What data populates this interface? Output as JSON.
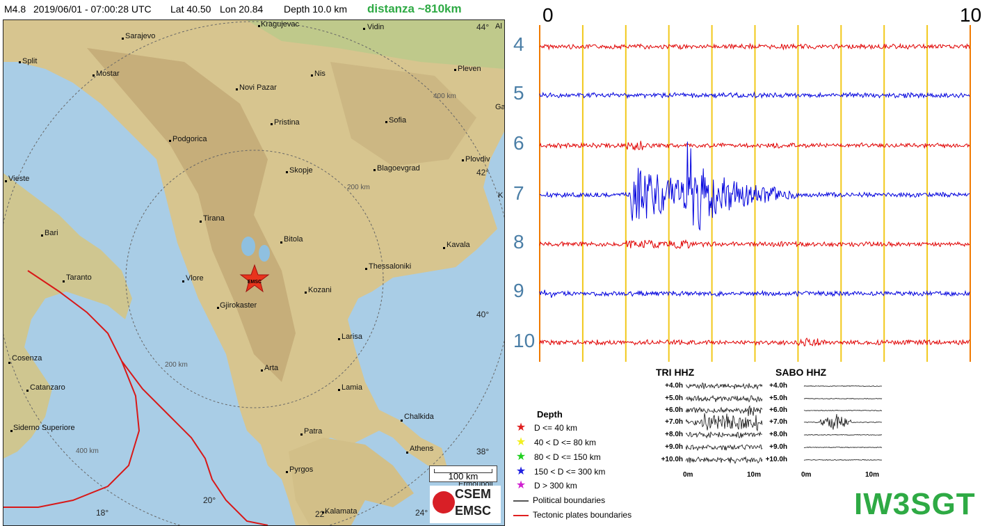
{
  "header": {
    "magnitude": "M4.8",
    "datetime": "2019/06/01 - 07:00:28 UTC",
    "lat": "Lat 40.50",
    "lon": "Lon 20.84",
    "depth": "Depth 10.0 km",
    "distance": "distanza ~810km"
  },
  "map": {
    "cities": [
      {
        "name": "Kragujevac"
      },
      {
        "name": "Vidin"
      },
      {
        "name": "Sarajevo"
      },
      {
        "name": "Split"
      },
      {
        "name": "Mostar"
      },
      {
        "name": "Nis"
      },
      {
        "name": "Pleven"
      },
      {
        "name": "Novi Pazar"
      },
      {
        "name": "Pristina"
      },
      {
        "name": "Sofia"
      },
      {
        "name": "Podgorica"
      },
      {
        "name": "Plovdiv"
      },
      {
        "name": "Skopje"
      },
      {
        "name": "Blagoevgrad"
      },
      {
        "name": "Vieste"
      },
      {
        "name": "Tirana"
      },
      {
        "name": "Bari"
      },
      {
        "name": "Bitola"
      },
      {
        "name": "Kavala"
      },
      {
        "name": "Thessaloniki"
      },
      {
        "name": "Taranto"
      },
      {
        "name": "Vlore"
      },
      {
        "name": "Kozani"
      },
      {
        "name": "Gjirokaster"
      },
      {
        "name": "Larisa"
      },
      {
        "name": "Cosenza"
      },
      {
        "name": "Arta"
      },
      {
        "name": "Catanzaro"
      },
      {
        "name": "Lamia"
      },
      {
        "name": "Chalkida"
      },
      {
        "name": "Siderno Superiore"
      },
      {
        "name": "Patra"
      },
      {
        "name": "Athens"
      },
      {
        "name": "Pyrgos"
      },
      {
        "name": "Kalamata"
      },
      {
        "name": "Ermoupoli"
      }
    ],
    "ring_labels": [
      "400 km",
      "200 km",
      "200 km",
      "400 km"
    ],
    "lat_labels": [
      "44°",
      "42°",
      "40°",
      "38°"
    ],
    "lon_labels": [
      "18°",
      "20°",
      "22°",
      "24°"
    ],
    "edge_labels": [
      "Al",
      "Ga",
      "K"
    ],
    "epicenter_label": "EMSC",
    "scale_label": "100 km",
    "logo_top": "CSEM",
    "logo_bottom": "EMSC"
  },
  "seismogram": {
    "x_axis_start": "0",
    "x_axis_end": "10",
    "rows": [
      "4",
      "5",
      "6",
      "7",
      "8",
      "9",
      "10"
    ],
    "row_colors": [
      "#e00000",
      "#0000dd",
      "#e00000",
      "#0000dd",
      "#e00000",
      "#0000dd",
      "#e00000"
    ]
  },
  "station_panels": [
    {
      "title": "TRI HHZ",
      "hours": [
        "+4.0h",
        "+5.0h",
        "+6.0h",
        "+7.0h",
        "+8.0h",
        "+9.0h",
        "+10.0h"
      ],
      "x_start": "0m",
      "x_end": "10m"
    },
    {
      "title": "SABO HHZ",
      "hours": [
        "+4.0h",
        "+5.0h",
        "+6.0h",
        "+7.0h",
        "+8.0h",
        "+9.0h",
        "+10.0h"
      ],
      "x_start": "0m",
      "x_end": "10m"
    }
  ],
  "legend": {
    "title": "Depth",
    "items": [
      {
        "label": "D <= 40 km",
        "color": "#e02020"
      },
      {
        "label": "40 < D <= 80 km",
        "color": "#f2f020"
      },
      {
        "label": "80 < D <= 150 km",
        "color": "#20d020"
      },
      {
        "label": "150 < D <= 300 km",
        "color": "#2020e0"
      },
      {
        "label": "D > 300 km",
        "color": "#d020d0"
      }
    ],
    "political": "Political boundaries",
    "tectonic": "Tectonic plates boundaries"
  },
  "callsign": "IW3SGT"
}
